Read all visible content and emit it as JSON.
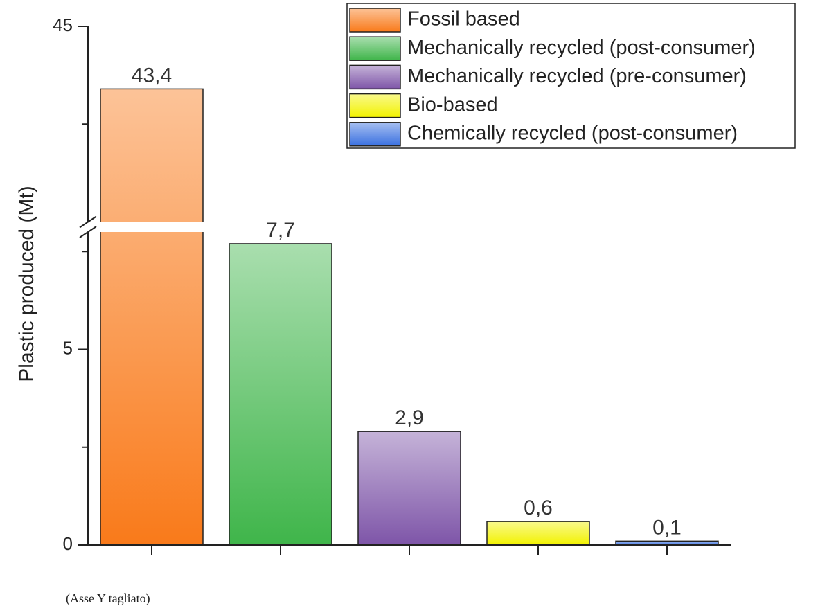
{
  "chart_data": {
    "type": "bar",
    "ylabel": "Plastic produced (Mt)",
    "note": "(Asse Y tagliato)",
    "ylim": [
      0,
      8
    ],
    "yticks": [
      0,
      5
    ],
    "yticks_minor": [
      2.5,
      7.5
    ],
    "ylim_upper": [
      40,
      45
    ],
    "yticks_upper": [
      45
    ],
    "yticks_upper_minor": [
      42.5
    ],
    "series": [
      {
        "name": "Fossil based",
        "color": "#f97a1a",
        "values": [
          43.4
        ],
        "value_labels": [
          "43,4"
        ]
      },
      {
        "name": "Mechanically recycled (post-consumer)",
        "color": "#3fb54a",
        "values": [
          7.7
        ],
        "value_labels": [
          "7,7"
        ]
      },
      {
        "name": "Mechanically recycled (pre-consumer)",
        "color": "#7e55a8",
        "values": [
          2.9
        ],
        "value_labels": [
          "2,9"
        ]
      },
      {
        "name": "Bio-based",
        "color": "#f2f200",
        "values": [
          0.6
        ],
        "value_labels": [
          "0,6"
        ]
      },
      {
        "name": "Chemically recycled (post-consumer)",
        "color": "#3a70e0",
        "values": [
          0.1
        ],
        "value_labels": [
          "0,1"
        ]
      }
    ]
  }
}
